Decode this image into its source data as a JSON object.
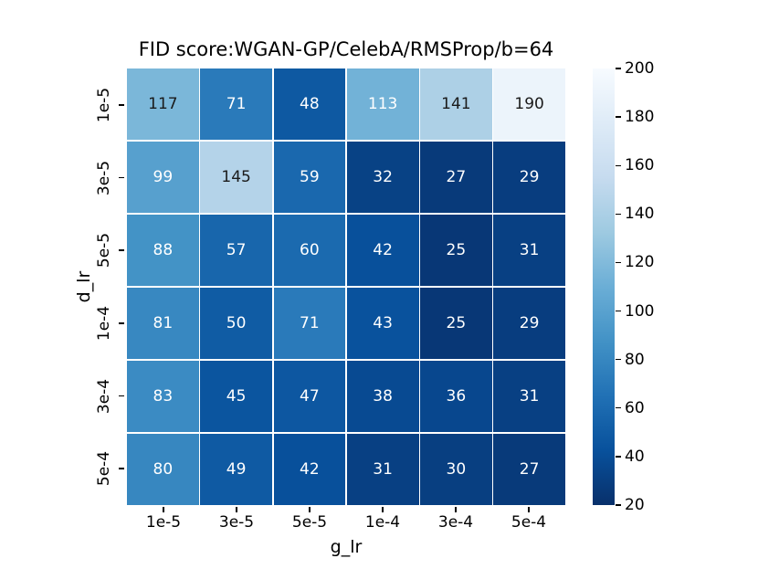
{
  "figure": {
    "background": "#ffffff"
  },
  "chart_data": {
    "type": "heatmap",
    "title": "FID score:WGAN-GP/CelebA/RMSProp/b=64",
    "xlabel": "g_lr",
    "ylabel": "d_lr",
    "x_tick_labels": [
      "1e-5",
      "3e-5",
      "5e-5",
      "1e-4",
      "3e-4",
      "5e-4"
    ],
    "y_tick_labels": [
      "1e-5",
      "3e-5",
      "5e-5",
      "1e-4",
      "3e-4",
      "5e-4"
    ],
    "values": [
      [
        117,
        71,
        48,
        113,
        141,
        190
      ],
      [
        99,
        145,
        59,
        32,
        27,
        29
      ],
      [
        88,
        57,
        60,
        42,
        25,
        31
      ],
      [
        81,
        50,
        71,
        43,
        25,
        29
      ],
      [
        83,
        45,
        47,
        38,
        36,
        31
      ],
      [
        80,
        49,
        42,
        31,
        30,
        27
      ]
    ],
    "grid_line_color": "#ffffff",
    "colormap": {
      "name": "Blues_r",
      "anchors": [
        "#f7fbff",
        "#deebf7",
        "#c6dbef",
        "#9ecae1",
        "#6baed6",
        "#4292c6",
        "#2171b5",
        "#08519c",
        "#08306b"
      ]
    },
    "colorbar": {
      "vmin": 20,
      "vmax": 200,
      "ticks": [
        200,
        180,
        160,
        140,
        120,
        100,
        80,
        60,
        40,
        20
      ],
      "position": "right"
    },
    "annotation": {
      "threshold": 115,
      "color_below": "#ffffff",
      "color_above": "#1a1a1a"
    }
  }
}
